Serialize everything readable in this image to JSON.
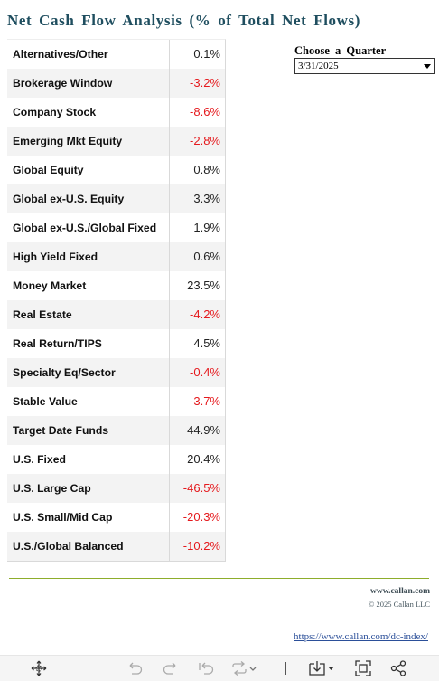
{
  "title": "Net Cash Flow Analysis (% of Total Net Flows)",
  "rows": [
    {
      "name": "Alternatives/Other",
      "value": "0.1%",
      "negative": false
    },
    {
      "name": "Brokerage Window",
      "value": "-3.2%",
      "negative": true
    },
    {
      "name": "Company Stock",
      "value": "-8.6%",
      "negative": true
    },
    {
      "name": "Emerging Mkt Equity",
      "value": "-2.8%",
      "negative": true
    },
    {
      "name": "Global Equity",
      "value": "0.8%",
      "negative": false
    },
    {
      "name": "Global ex-U.S. Equity",
      "value": "3.3%",
      "negative": false
    },
    {
      "name": "Global ex-U.S./Global Fixed",
      "value": "1.9%",
      "negative": false
    },
    {
      "name": "High Yield Fixed",
      "value": "0.6%",
      "negative": false
    },
    {
      "name": "Money Market",
      "value": "23.5%",
      "negative": false
    },
    {
      "name": "Real Estate",
      "value": "-4.2%",
      "negative": true
    },
    {
      "name": "Real Return/TIPS",
      "value": "4.5%",
      "negative": false
    },
    {
      "name": "Specialty Eq/Sector",
      "value": "-0.4%",
      "negative": true
    },
    {
      "name": "Stable Value",
      "value": "-3.7%",
      "negative": true
    },
    {
      "name": "Target Date Funds",
      "value": "44.9%",
      "negative": false
    },
    {
      "name": "U.S. Fixed",
      "value": "20.4%",
      "negative": false
    },
    {
      "name": "U.S. Large Cap",
      "value": "-46.5%",
      "negative": true
    },
    {
      "name": "U.S. Small/Mid Cap",
      "value": "-20.3%",
      "negative": true
    },
    {
      "name": "U.S./Global Balanced",
      "value": "-10.2%",
      "negative": true
    }
  ],
  "quarter_filter": {
    "label": "Choose a Quarter",
    "selected": "3/31/2025"
  },
  "footer": {
    "site": "www.callan.com",
    "copyright": "© 2025 Callan LLC",
    "link": "https://www.callan.com/dc-index/"
  },
  "colors": {
    "title": "#1f4e5f",
    "negative": "#e5191d",
    "divider": "#8dad2b",
    "link": "#2b4f99"
  },
  "toolbar": {
    "icons": [
      "move-icon",
      "undo-icon",
      "redo-icon",
      "revert-icon",
      "refresh-icon",
      "download-icon",
      "fullscreen-icon",
      "share-icon"
    ]
  }
}
